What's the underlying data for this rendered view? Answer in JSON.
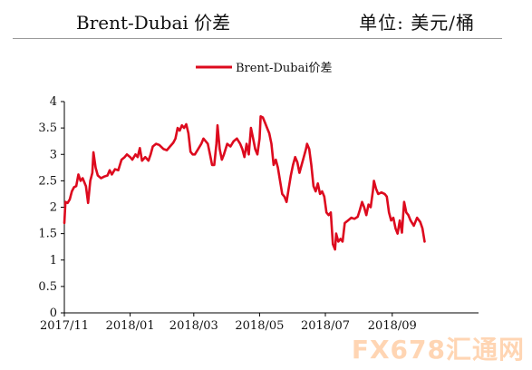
{
  "header": {
    "title": "Brent-Dubai  价差",
    "unit": "单位: 美元/桶"
  },
  "watermark": "FX678汇通网",
  "colors": {
    "series": "#dd0a1e",
    "axis": "#000000",
    "text": "#111111",
    "watermark": "#ffc89a"
  },
  "chart_data": {
    "type": "line",
    "title": "",
    "xlabel": "",
    "ylabel": "",
    "ylim": [
      0,
      4
    ],
    "yticks": [
      "0",
      "0.5",
      "1",
      "1.5",
      "2",
      "2.5",
      "3",
      "3.5",
      "4"
    ],
    "xticks": [
      "2017/11",
      "2018/01",
      "2018/03",
      "2018/05",
      "2018/07",
      "2018/09"
    ],
    "x_range": [
      "2017-11-01",
      "2018-11-20"
    ],
    "legend": "top-center",
    "grid": false,
    "series": [
      {
        "name": "Brent-Dubai价差",
        "color": "#dd0a1e",
        "points": [
          [
            "2017-11-01",
            1.7
          ],
          [
            "2017-11-02",
            2.1
          ],
          [
            "2017-11-04",
            2.08
          ],
          [
            "2017-11-06",
            2.15
          ],
          [
            "2017-11-08",
            2.3
          ],
          [
            "2017-11-10",
            2.38
          ],
          [
            "2017-11-12",
            2.4
          ],
          [
            "2017-11-14",
            2.62
          ],
          [
            "2017-11-16",
            2.5
          ],
          [
            "2017-11-18",
            2.55
          ],
          [
            "2017-11-21",
            2.4
          ],
          [
            "2017-11-23",
            2.08
          ],
          [
            "2017-11-25",
            2.5
          ],
          [
            "2017-11-27",
            2.65
          ],
          [
            "2017-11-28",
            3.04
          ],
          [
            "2017-11-30",
            2.75
          ],
          [
            "2017-12-02",
            2.6
          ],
          [
            "2017-12-05",
            2.55
          ],
          [
            "2017-12-08",
            2.58
          ],
          [
            "2017-12-11",
            2.6
          ],
          [
            "2017-12-13",
            2.7
          ],
          [
            "2017-12-15",
            2.62
          ],
          [
            "2017-12-18",
            2.72
          ],
          [
            "2017-12-21",
            2.7
          ],
          [
            "2017-12-24",
            2.9
          ],
          [
            "2017-12-27",
            2.95
          ],
          [
            "2017-12-29",
            3.0
          ],
          [
            "2018-01-01",
            2.95
          ],
          [
            "2018-01-03",
            2.9
          ],
          [
            "2018-01-06",
            3.0
          ],
          [
            "2018-01-08",
            2.95
          ],
          [
            "2018-01-10",
            3.12
          ],
          [
            "2018-01-12",
            2.88
          ],
          [
            "2018-01-15",
            2.95
          ],
          [
            "2018-01-18",
            2.88
          ],
          [
            "2018-01-20",
            3.0
          ],
          [
            "2018-01-22",
            3.15
          ],
          [
            "2018-01-25",
            3.2
          ],
          [
            "2018-01-28",
            3.18
          ],
          [
            "2018-02-01",
            3.1
          ],
          [
            "2018-02-04",
            3.08
          ],
          [
            "2018-02-07",
            3.15
          ],
          [
            "2018-02-10",
            3.22
          ],
          [
            "2018-02-12",
            3.3
          ],
          [
            "2018-02-14",
            3.5
          ],
          [
            "2018-02-16",
            3.45
          ],
          [
            "2018-02-18",
            3.55
          ],
          [
            "2018-02-20",
            3.5
          ],
          [
            "2018-02-22",
            3.57
          ],
          [
            "2018-02-24",
            3.4
          ],
          [
            "2018-02-26",
            3.05
          ],
          [
            "2018-02-28",
            3.0
          ],
          [
            "2018-03-02",
            3.0
          ],
          [
            "2018-03-05",
            3.1
          ],
          [
            "2018-03-08",
            3.2
          ],
          [
            "2018-03-10",
            3.3
          ],
          [
            "2018-03-12",
            3.25
          ],
          [
            "2018-03-14",
            3.2
          ],
          [
            "2018-03-16",
            3.0
          ],
          [
            "2018-03-18",
            2.8
          ],
          [
            "2018-03-20",
            2.8
          ],
          [
            "2018-03-22",
            3.2
          ],
          [
            "2018-03-23",
            3.55
          ],
          [
            "2018-03-25",
            3.1
          ],
          [
            "2018-03-27",
            2.9
          ],
          [
            "2018-03-29",
            3.0
          ],
          [
            "2018-04-01",
            3.2
          ],
          [
            "2018-04-04",
            3.15
          ],
          [
            "2018-04-07",
            3.25
          ],
          [
            "2018-04-10",
            3.3
          ],
          [
            "2018-04-13",
            3.2
          ],
          [
            "2018-04-15",
            3.1
          ],
          [
            "2018-04-17",
            2.95
          ],
          [
            "2018-04-19",
            3.2
          ],
          [
            "2018-04-21",
            3.0
          ],
          [
            "2018-04-23",
            3.5
          ],
          [
            "2018-04-25",
            3.3
          ],
          [
            "2018-04-27",
            3.1
          ],
          [
            "2018-04-29",
            3.0
          ],
          [
            "2018-05-01",
            3.3
          ],
          [
            "2018-05-02",
            3.72
          ],
          [
            "2018-05-04",
            3.7
          ],
          [
            "2018-05-06",
            3.6
          ],
          [
            "2018-05-08",
            3.5
          ],
          [
            "2018-05-10",
            3.4
          ],
          [
            "2018-05-12",
            3.2
          ],
          [
            "2018-05-14",
            2.8
          ],
          [
            "2018-05-16",
            2.9
          ],
          [
            "2018-05-18",
            2.75
          ],
          [
            "2018-05-20",
            2.5
          ],
          [
            "2018-05-22",
            2.25
          ],
          [
            "2018-05-24",
            2.2
          ],
          [
            "2018-05-26",
            2.1
          ],
          [
            "2018-05-28",
            2.35
          ],
          [
            "2018-05-30",
            2.6
          ],
          [
            "2018-06-01",
            2.8
          ],
          [
            "2018-06-03",
            2.95
          ],
          [
            "2018-06-05",
            2.85
          ],
          [
            "2018-06-07",
            2.65
          ],
          [
            "2018-06-09",
            2.8
          ],
          [
            "2018-06-11",
            2.95
          ],
          [
            "2018-06-13",
            3.1
          ],
          [
            "2018-06-14",
            3.2
          ],
          [
            "2018-06-16",
            3.1
          ],
          [
            "2018-06-18",
            2.8
          ],
          [
            "2018-06-20",
            2.4
          ],
          [
            "2018-06-22",
            2.3
          ],
          [
            "2018-06-24",
            2.45
          ],
          [
            "2018-06-26",
            2.25
          ],
          [
            "2018-06-28",
            2.3
          ],
          [
            "2018-06-30",
            2.2
          ],
          [
            "2018-07-02",
            1.9
          ],
          [
            "2018-07-04",
            1.85
          ],
          [
            "2018-07-06",
            1.9
          ],
          [
            "2018-07-08",
            1.3
          ],
          [
            "2018-07-10",
            1.2
          ],
          [
            "2018-07-11",
            1.5
          ],
          [
            "2018-07-13",
            1.35
          ],
          [
            "2018-07-15",
            1.4
          ],
          [
            "2018-07-17",
            1.35
          ],
          [
            "2018-07-19",
            1.7
          ],
          [
            "2018-07-22",
            1.75
          ],
          [
            "2018-07-25",
            1.8
          ],
          [
            "2018-07-28",
            1.78
          ],
          [
            "2018-07-31",
            1.82
          ],
          [
            "2018-08-02",
            1.95
          ],
          [
            "2018-08-04",
            2.1
          ],
          [
            "2018-08-06",
            2.0
          ],
          [
            "2018-08-08",
            1.85
          ],
          [
            "2018-08-10",
            2.05
          ],
          [
            "2018-08-12",
            2.0
          ],
          [
            "2018-08-14",
            2.3
          ],
          [
            "2018-08-15",
            2.5
          ],
          [
            "2018-08-17",
            2.35
          ],
          [
            "2018-08-19",
            2.25
          ],
          [
            "2018-08-22",
            2.28
          ],
          [
            "2018-08-25",
            2.25
          ],
          [
            "2018-08-27",
            2.2
          ],
          [
            "2018-08-29",
            1.9
          ],
          [
            "2018-08-31",
            1.75
          ],
          [
            "2018-09-02",
            1.8
          ],
          [
            "2018-09-04",
            1.6
          ],
          [
            "2018-09-06",
            1.5
          ],
          [
            "2018-09-08",
            1.75
          ],
          [
            "2018-09-10",
            1.52
          ],
          [
            "2018-09-12",
            2.1
          ],
          [
            "2018-09-14",
            1.9
          ],
          [
            "2018-09-16",
            1.85
          ],
          [
            "2018-09-18",
            1.75
          ],
          [
            "2018-09-21",
            1.65
          ],
          [
            "2018-09-24",
            1.8
          ],
          [
            "2018-09-27",
            1.72
          ],
          [
            "2018-09-29",
            1.6
          ],
          [
            "2018-10-01",
            1.35
          ]
        ]
      }
    ]
  }
}
